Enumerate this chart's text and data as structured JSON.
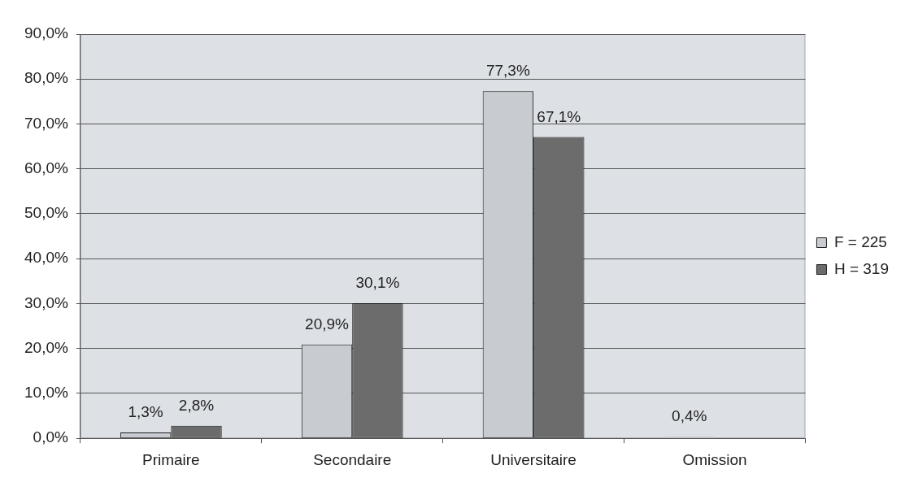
{
  "chart_data": {
    "type": "bar",
    "categories": [
      "Primaire",
      "Secondaire",
      "Universitaire",
      "Omission"
    ],
    "series": [
      {
        "name": "F = 225",
        "color": "#c8cbd0",
        "values": [
          1.3,
          20.9,
          77.3,
          0.4
        ],
        "value_labels": [
          "1,3%",
          "20,9%",
          "77,3%",
          "0,4%"
        ]
      },
      {
        "name": "H = 319",
        "color": "#6c6c6c",
        "values": [
          2.8,
          30.1,
          67.1,
          null
        ],
        "value_labels": [
          "2,8%",
          "30,1%",
          "67,1%",
          null
        ]
      }
    ],
    "ylim": [
      0,
      90
    ],
    "yticks": [
      {
        "value": 0,
        "label": "0,0%"
      },
      {
        "value": 10,
        "label": "10,0%"
      },
      {
        "value": 20,
        "label": "20,0%"
      },
      {
        "value": 30,
        "label": "30,0%"
      },
      {
        "value": 40,
        "label": "40,0%"
      },
      {
        "value": 50,
        "label": "50,0%"
      },
      {
        "value": 60,
        "label": "60,0%"
      },
      {
        "value": 70,
        "label": "70,0%"
      },
      {
        "value": 80,
        "label": "80,0%"
      },
      {
        "value": 90,
        "label": "90,0%"
      }
    ],
    "grid": "y",
    "legend": "right"
  }
}
